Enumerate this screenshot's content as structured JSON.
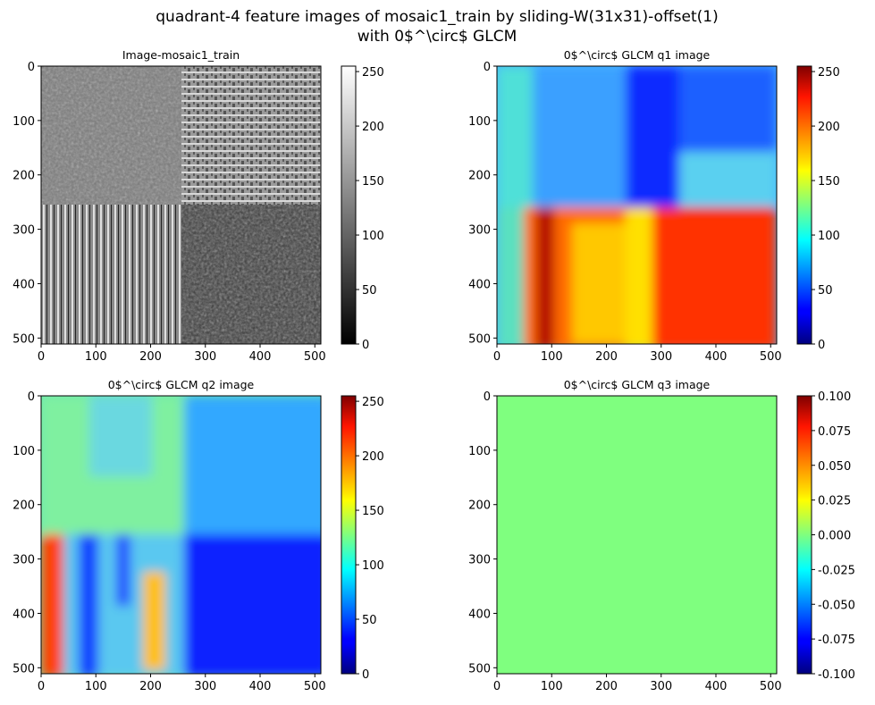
{
  "figure": {
    "title_line1": "quadrant-4 feature images of mosaic1_train by sliding-W(31x31)-offset(1)",
    "title_line2": "with 0$^\\circ$ GLCM"
  },
  "colors": {
    "q3_fill": "#7fff7f",
    "axis": "#000000",
    "background": "#ffffff"
  },
  "chart_data": [
    {
      "type": "heatmap",
      "title": "Image-mosaic1_train",
      "colormap": "gray",
      "xlim": [
        0,
        511
      ],
      "ylim": [
        511,
        0
      ],
      "xticks": [
        "0",
        "100",
        "200",
        "300",
        "400",
        "500"
      ],
      "yticks": [
        "0",
        "100",
        "200",
        "300",
        "400",
        "500"
      ],
      "colorbar": {
        "range": [
          0,
          255
        ],
        "ticks": [
          "0",
          "50",
          "100",
          "150",
          "200",
          "250"
        ]
      },
      "quadrant_means": {
        "top_left": 120,
        "top_right": 150,
        "bottom_left": 140,
        "bottom_right": 90
      }
    },
    {
      "type": "heatmap",
      "title": "0$^\\circ$ GLCM q1 image",
      "colormap": "jet",
      "xlim": [
        0,
        511
      ],
      "ylim": [
        511,
        0
      ],
      "xticks": [
        "0",
        "100",
        "200",
        "300",
        "400",
        "500"
      ],
      "yticks": [
        "0",
        "100",
        "200",
        "300",
        "400",
        "500"
      ],
      "colorbar": {
        "range": [
          0,
          255
        ],
        "ticks": [
          "0",
          "50",
          "100",
          "150",
          "200",
          "250"
        ]
      },
      "quadrant_means": {
        "top_left": 95,
        "top_right": 70,
        "bottom_left": 185,
        "bottom_right": 215
      }
    },
    {
      "type": "heatmap",
      "title": "0$^\\circ$ GLCM q2 image",
      "colormap": "jet",
      "xlim": [
        0,
        511
      ],
      "ylim": [
        511,
        0
      ],
      "xticks": [
        "0",
        "100",
        "200",
        "300",
        "400",
        "500"
      ],
      "yticks": [
        "0",
        "100",
        "200",
        "300",
        "400",
        "500"
      ],
      "colorbar": {
        "range": [
          0,
          255
        ],
        "ticks": [
          "0",
          "50",
          "100",
          "150",
          "200",
          "250"
        ]
      },
      "quadrant_means": {
        "top_left": 125,
        "top_right": 95,
        "bottom_left": 80,
        "bottom_right": 40
      }
    },
    {
      "type": "heatmap",
      "title": "0$^\\circ$ GLCM q3 image",
      "colormap": "jet",
      "xlim": [
        0,
        511
      ],
      "ylim": [
        511,
        0
      ],
      "xticks": [
        "0",
        "100",
        "200",
        "300",
        "400",
        "500"
      ],
      "yticks": [
        "0",
        "100",
        "200",
        "300",
        "400",
        "500"
      ],
      "colorbar": {
        "range": [
          -0.1,
          0.1
        ],
        "ticks": [
          "-0.100",
          "-0.075",
          "-0.050",
          "-0.025",
          "0.000",
          "0.025",
          "0.050",
          "0.075",
          "0.100"
        ]
      },
      "constant_value": 0.0
    }
  ]
}
